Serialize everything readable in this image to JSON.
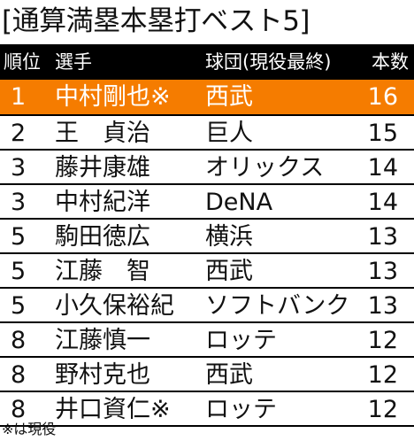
{
  "title": "[通算満塁本塁打ベスト5]",
  "colors": {
    "highlight": "#f57c00",
    "header_bg": "#000000"
  },
  "headers": {
    "rank": "順位",
    "name": "選手",
    "team": "球団(現役最終)",
    "count": "本数"
  },
  "rows": [
    {
      "rank": "1",
      "name": "中村剛也※",
      "team": "西武",
      "count": "16",
      "highlight": true
    },
    {
      "rank": "2",
      "name": "王　貞治",
      "team": "巨人",
      "count": "15"
    },
    {
      "rank": "3",
      "name": "藤井康雄",
      "team": "オリックス",
      "count": "14"
    },
    {
      "rank": "3",
      "name": "中村紀洋",
      "team": "DeNA",
      "count": "14"
    },
    {
      "rank": "5",
      "name": "駒田徳広",
      "team": "横浜",
      "count": "13"
    },
    {
      "rank": "5",
      "name": "江藤　智",
      "team": "西武",
      "count": "13"
    },
    {
      "rank": "5",
      "name": "小久保裕紀",
      "team": "ソフトバンク",
      "count": "13"
    },
    {
      "rank": "8",
      "name": "江藤慎一",
      "team": "ロッテ",
      "count": "12"
    },
    {
      "rank": "8",
      "name": "野村克也",
      "team": "西武",
      "count": "12"
    },
    {
      "rank": "8",
      "name": "井口資仁※",
      "team": "ロッテ",
      "count": "12"
    }
  ],
  "footnote": "※は現役"
}
